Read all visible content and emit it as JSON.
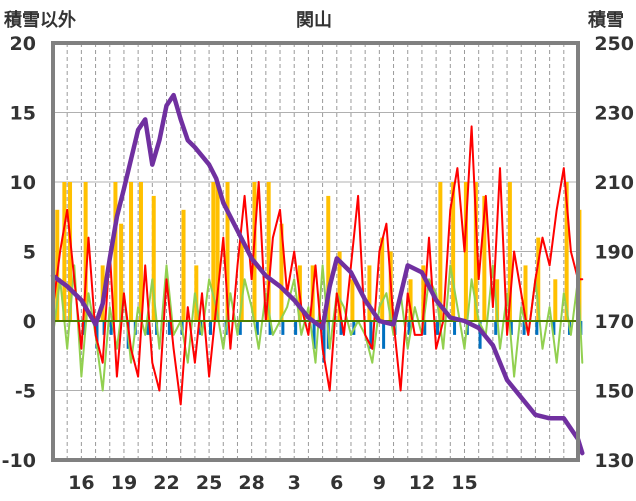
{
  "chart_data": {
    "type": "line",
    "title": "関山",
    "y_left_label": "積雪以外",
    "y_right_label": "積雪",
    "y_left_ticks": [
      "20",
      "15",
      "10",
      "5",
      "0",
      "-5",
      "-10"
    ],
    "y_right_ticks": [
      "250",
      "230",
      "210",
      "190",
      "170",
      "150",
      "130"
    ],
    "y_left_range": [
      -10,
      20
    ],
    "y_right_range": [
      130,
      250
    ],
    "x_tick_labels": [
      "16",
      "19",
      "22",
      "25",
      "28",
      "3",
      "6",
      "9",
      "12",
      "15"
    ],
    "x_range_days": [
      14,
      51
    ],
    "grid": "horizontal solid, vertical dashed daily",
    "colors": {
      "snow_depth": "#7030A0",
      "temperature_max": "#FF0000",
      "temperature_min": "#92D050",
      "precipitation": "#FFC000",
      "snow_change": "#0070C0",
      "frame": "#808080",
      "zero_line": "#4F7F00"
    },
    "series": [
      {
        "kind": "snow_depth",
        "axis": "right",
        "x": [
          14,
          15,
          16,
          17,
          17.5,
          18,
          18.5,
          19,
          20,
          20.5,
          21,
          21.5,
          22,
          22.5,
          23,
          23.5,
          24,
          25,
          25.5,
          26,
          27,
          28,
          29,
          30,
          31,
          32,
          33,
          33.5,
          34,
          35,
          36,
          37,
          38,
          39,
          40,
          41,
          42,
          43,
          44,
          45,
          46,
          47,
          48,
          49,
          50,
          51,
          51.3
        ],
        "y": [
          183,
          180,
          176,
          169,
          175,
          188,
          200,
          208,
          225,
          228,
          215,
          222,
          232,
          235,
          228,
          222,
          220,
          215,
          211,
          204,
          196,
          188,
          183,
          180,
          176,
          171,
          168,
          180,
          188,
          184,
          176,
          170,
          169,
          186,
          184,
          176,
          171,
          170,
          168,
          163,
          153,
          148,
          143,
          142,
          142,
          136,
          132
        ]
      },
      {
        "kind": "temperature_max",
        "axis": "left",
        "x": [
          14,
          14.5,
          15,
          15.5,
          16,
          16.5,
          17,
          17.5,
          18,
          18.5,
          19,
          19.5,
          20,
          20.5,
          21,
          21.5,
          22,
          22.5,
          23,
          23.5,
          24,
          24.5,
          25,
          25.5,
          26,
          26.5,
          27,
          27.5,
          28,
          28.5,
          29,
          29.5,
          30,
          30.5,
          31,
          31.5,
          32,
          32.5,
          33,
          33.5,
          34,
          34.5,
          35,
          35.5,
          36,
          36.5,
          37,
          37.5,
          38,
          38.5,
          39,
          39.5,
          40,
          40.5,
          41,
          41.5,
          42,
          42.5,
          43,
          43.5,
          44,
          44.5,
          45,
          45.5,
          46,
          46.5,
          47,
          47.5,
          48,
          48.5,
          49,
          49.5,
          50,
          50.5,
          51,
          51.3
        ],
        "y": [
          1,
          5,
          8,
          3,
          -2,
          6,
          -1,
          -3,
          5,
          -4,
          2,
          -2,
          -4,
          4,
          -3,
          -5,
          3,
          -2,
          -6,
          1,
          -3,
          2,
          -4,
          1,
          6,
          -2,
          4,
          9,
          3,
          10,
          0,
          6,
          8,
          2,
          5,
          1,
          -1,
          4,
          -2,
          -5,
          2,
          -1,
          4,
          9,
          -1,
          -2,
          5,
          7,
          0,
          -5,
          2,
          -1,
          -1,
          6,
          -2,
          0,
          8,
          11,
          5,
          14,
          3,
          9,
          1,
          11,
          -1,
          5,
          2,
          -1,
          3,
          6,
          4,
          8,
          11,
          5,
          3,
          3
        ]
      },
      {
        "kind": "temperature_min",
        "axis": "left",
        "x": [
          14,
          14.5,
          15,
          15.5,
          16,
          16.5,
          17,
          17.5,
          18,
          18.5,
          19,
          19.5,
          20,
          20.5,
          21,
          21.5,
          22,
          22.5,
          23,
          23.5,
          24,
          24.5,
          25,
          25.5,
          26,
          26.5,
          27,
          27.5,
          28,
          28.5,
          29,
          29.5,
          30,
          30.5,
          31,
          31.5,
          32,
          32.5,
          33,
          33.5,
          34,
          34.5,
          35,
          35.5,
          36,
          36.5,
          37,
          37.5,
          38,
          38.5,
          39,
          39.5,
          40,
          40.5,
          41,
          41.5,
          42,
          42.5,
          43,
          43.5,
          44,
          44.5,
          45,
          45.5,
          46,
          46.5,
          47,
          47.5,
          48,
          48.5,
          49,
          49.5,
          50,
          50.5,
          51,
          51.3
        ],
        "y": [
          -1,
          3,
          -2,
          4,
          -4,
          2,
          -1,
          -5,
          1,
          -2,
          2,
          -3,
          1,
          -1,
          3,
          -2,
          4,
          -1,
          0,
          -3,
          2,
          -1,
          3,
          1,
          -2,
          2,
          -1,
          3,
          1,
          -2,
          2,
          -1,
          0,
          1,
          3,
          -1,
          1,
          -3,
          4,
          -2,
          2,
          1,
          -1,
          0,
          -1,
          -3,
          1,
          2,
          -1,
          2,
          -2,
          1,
          -1,
          3,
          2,
          -2,
          4,
          1,
          -2,
          3,
          0,
          -1,
          4,
          -2,
          2,
          -4,
          1,
          -1,
          3,
          -2,
          1,
          -3,
          2,
          -1,
          3,
          -3
        ]
      },
      {
        "kind": "precipitation",
        "axis": "left",
        "x": [
          14.3,
          14.8,
          15.2,
          16.3,
          17.5,
          18.4,
          18.8,
          19.5,
          20.2,
          21.1,
          23.2,
          24.1,
          25.3,
          25.6,
          26.3,
          27.3,
          28.2,
          29.2,
          30.1,
          31.4,
          32.3,
          33.4,
          34.2,
          35.1,
          36.3,
          37.2,
          37.8,
          39.2,
          40.1,
          41.3,
          42.2,
          43.1,
          43.8,
          44.4,
          45.3,
          46.2,
          47.3,
          48.2,
          49.4,
          50.2,
          51.1
        ],
        "y": [
          8,
          10,
          10,
          10,
          4,
          10,
          7,
          10,
          10,
          9,
          8,
          4,
          10,
          10,
          10,
          6,
          10,
          10,
          7,
          4,
          4,
          9,
          5,
          3,
          4,
          6,
          5,
          3,
          4,
          10,
          10,
          10,
          10,
          9,
          3,
          10,
          4,
          6,
          3,
          10,
          8
        ]
      },
      {
        "kind": "snow_change",
        "axis": "left",
        "x": [
          16.2,
          17.1,
          17.6,
          18.1,
          19.3,
          19.8,
          20.7,
          21.3,
          22.2,
          23.1,
          24.4,
          25.1,
          26.2,
          27.2,
          28.4,
          29.3,
          30.2,
          31.1,
          32.4,
          33.1,
          33.4,
          34.3,
          35.2,
          36.4,
          37.3,
          38.1,
          39.1,
          40.2,
          41.1,
          42.3,
          43.2,
          44.1,
          45.2,
          46.3,
          47.2,
          48.1,
          49.3,
          50.4,
          51.2
        ],
        "y": [
          -1,
          -2,
          -1,
          -1,
          -2,
          -1,
          -1,
          -1,
          -1,
          -1,
          -1,
          -1,
          -1,
          -1,
          -1,
          -1,
          -1,
          -1,
          -2,
          -3,
          -2,
          -1,
          -1,
          -2,
          -2,
          -1,
          -1,
          -1,
          -1,
          -1,
          -1,
          -2,
          -1,
          -1,
          -1,
          -1,
          -1,
          -1,
          -1
        ]
      }
    ]
  }
}
